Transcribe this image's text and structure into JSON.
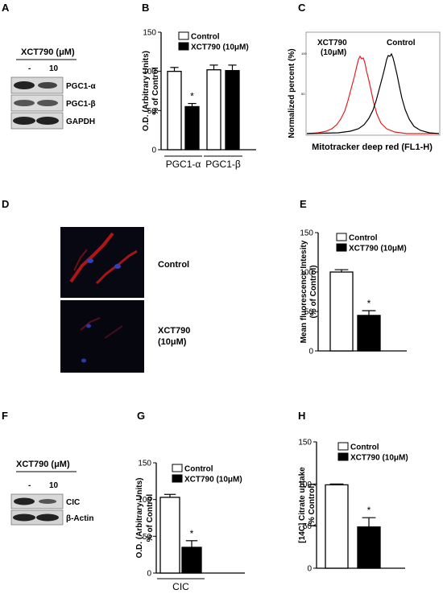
{
  "panels": {
    "a": {
      "letter": "A",
      "header": "XCT790 (μM)",
      "lanes": [
        "-",
        "10"
      ],
      "bands": [
        "PGC1-α",
        "PGC1-β",
        "GAPDH"
      ]
    },
    "c": {
      "letter": "C",
      "xlabel": "Mitotracker deep red (FL1-H)",
      "ylabel": "Normalized percent (%)",
      "legend_treated": [
        "XCT790",
        "(10μM)"
      ],
      "legend_control": "Control",
      "treated_color": "#e02020",
      "control_color": "#000000"
    },
    "d": {
      "letter": "D",
      "label_top": "Control",
      "label_bottom": [
        "XCT790",
        "(10μM)"
      ]
    },
    "f": {
      "letter": "F",
      "header": "XCT790 (μM)",
      "lanes": [
        "-",
        "10"
      ],
      "bands": [
        "CIC",
        "β-Actin"
      ]
    }
  },
  "chart_data": [
    {
      "id": "B",
      "letter": "B",
      "type": "bar",
      "categories": [
        "PGC1-α",
        "PGC1-β"
      ],
      "series": [
        {
          "name": "Control",
          "values": [
            100,
            102
          ],
          "errors": [
            5,
            6
          ],
          "fill": "#ffffff"
        },
        {
          "name": "XCT790 (10μM)",
          "values": [
            55,
            101
          ],
          "errors": [
            4,
            7
          ],
          "fill": "#000000"
        }
      ],
      "significance": [
        {
          "category": 0,
          "series": 1,
          "mark": "*"
        }
      ],
      "ylabel": [
        "O.D. (Arbitrary Units)",
        "% of Control"
      ],
      "ylim": [
        0,
        150
      ],
      "yticks": [
        0,
        50,
        100,
        150
      ],
      "legend_position": "top-right"
    },
    {
      "id": "E",
      "letter": "E",
      "type": "bar",
      "categories": [
        ""
      ],
      "series": [
        {
          "name": "Control",
          "values": [
            100
          ],
          "errors": [
            3
          ],
          "fill": "#ffffff"
        },
        {
          "name": "XCT790 (10μM)",
          "values": [
            45
          ],
          "errors": [
            6
          ],
          "fill": "#000000"
        }
      ],
      "significance": [
        {
          "category": 0,
          "series": 1,
          "mark": "*"
        }
      ],
      "ylabel": [
        "Mean fluorescence Intesity",
        "(% of Control)"
      ],
      "ylim": [
        0,
        150
      ],
      "yticks": [
        0,
        50,
        100,
        150
      ],
      "legend_position": "top-right"
    },
    {
      "id": "G",
      "letter": "G",
      "type": "bar",
      "categories": [
        "CIC"
      ],
      "series": [
        {
          "name": "Control",
          "values": [
            103
          ],
          "errors": [
            4
          ],
          "fill": "#ffffff"
        },
        {
          "name": "XCT790 (10μM)",
          "values": [
            35
          ],
          "errors": [
            9
          ],
          "fill": "#000000"
        }
      ],
      "significance": [
        {
          "category": 0,
          "series": 1,
          "mark": "*"
        }
      ],
      "ylabel": [
        "O.D. (Arbitrary Units)",
        "% of Control"
      ],
      "ylim": [
        0,
        150
      ],
      "yticks": [
        0,
        50,
        100,
        150
      ],
      "legend_position": "top-right"
    },
    {
      "id": "H",
      "letter": "H",
      "type": "bar",
      "categories": [
        ""
      ],
      "series": [
        {
          "name": "Control",
          "values": [
            99
          ],
          "errors": [
            1
          ],
          "fill": "#ffffff"
        },
        {
          "name": "XCT790 (10μM)",
          "values": [
            49
          ],
          "errors": [
            11
          ],
          "fill": "#000000"
        }
      ],
      "significance": [
        {
          "category": 0,
          "series": 1,
          "mark": "*"
        }
      ],
      "ylabel": [
        "[14C] Citrate uptake",
        "(% Control)"
      ],
      "ylim": [
        0,
        150
      ],
      "yticks": [
        0,
        50,
        100,
        150
      ],
      "legend_position": "top-right"
    },
    {
      "id": "C",
      "letter": "C",
      "type": "line",
      "xlabel": "Mitotracker deep red (FL1-H)",
      "ylabel": "Normalized percent (%)",
      "xscale": "log",
      "yticks": [
        0,
        50,
        100
      ],
      "series": [
        {
          "name": "XCT790 (10μM)",
          "color": "#e02020",
          "peak_x": 1.4,
          "peak_y": 94
        },
        {
          "name": "Control",
          "color": "#000000",
          "peak_x": 2.0,
          "peak_y": 96
        }
      ]
    }
  ]
}
